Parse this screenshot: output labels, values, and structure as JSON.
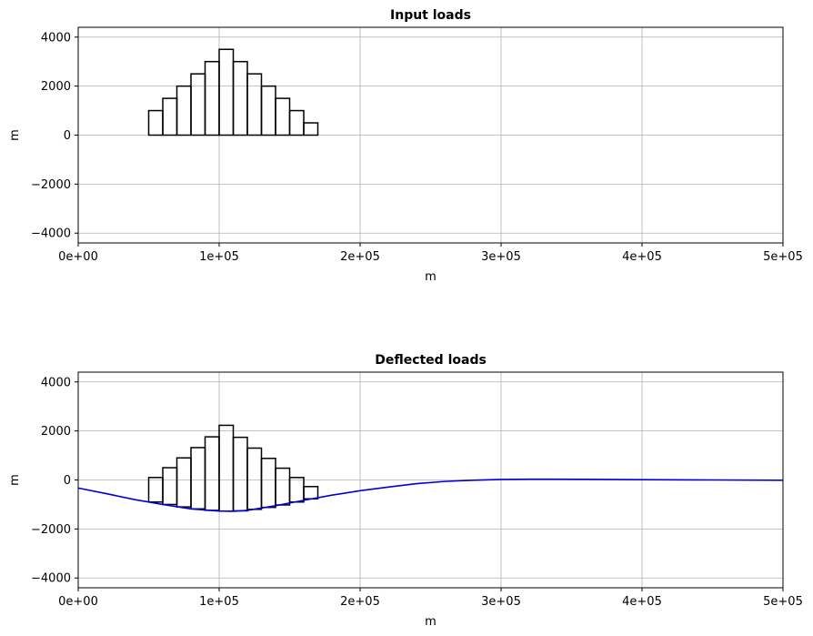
{
  "chart_data": [
    {
      "type": "bar",
      "title": "Input loads",
      "xlabel": "m",
      "ylabel": "m",
      "xlim": [
        0,
        500000
      ],
      "ylim": [
        -4400,
        4400
      ],
      "xticks": [
        0,
        100000,
        200000,
        300000,
        400000,
        500000
      ],
      "xtick_labels": [
        "0e+00",
        "1e+05",
        "2e+05",
        "3e+05",
        "4e+05",
        "5e+05"
      ],
      "yticks": [
        -4000,
        -2000,
        0,
        2000,
        4000
      ],
      "ytick_labels": [
        "−4000",
        "−2000",
        "0",
        "2000",
        "4000"
      ],
      "grid": true,
      "bar_width": 10000,
      "bar_color": "#000000",
      "bars": [
        {
          "x_start": 50000,
          "bottom": 0,
          "top": 1000
        },
        {
          "x_start": 60000,
          "bottom": 0,
          "top": 1500
        },
        {
          "x_start": 70000,
          "bottom": 0,
          "top": 2000
        },
        {
          "x_start": 80000,
          "bottom": 0,
          "top": 2500
        },
        {
          "x_start": 90000,
          "bottom": 0,
          "top": 3000
        },
        {
          "x_start": 100000,
          "bottom": 0,
          "top": 3500
        },
        {
          "x_start": 110000,
          "bottom": 0,
          "top": 3000
        },
        {
          "x_start": 120000,
          "bottom": 0,
          "top": 2500
        },
        {
          "x_start": 130000,
          "bottom": 0,
          "top": 2000
        },
        {
          "x_start": 140000,
          "bottom": 0,
          "top": 1500
        },
        {
          "x_start": 150000,
          "bottom": 0,
          "top": 1000
        },
        {
          "x_start": 160000,
          "bottom": 0,
          "top": 500
        }
      ]
    },
    {
      "type": "line",
      "title": "Deflected loads",
      "xlabel": "m",
      "ylabel": "m",
      "xlim": [
        0,
        500000
      ],
      "ylim": [
        -4400,
        4400
      ],
      "xticks": [
        0,
        100000,
        200000,
        300000,
        400000,
        500000
      ],
      "xtick_labels": [
        "0e+00",
        "1e+05",
        "2e+05",
        "3e+05",
        "4e+05",
        "5e+05"
      ],
      "yticks": [
        -4000,
        -2000,
        0,
        2000,
        4000
      ],
      "ytick_labels": [
        "−4000",
        "−2000",
        "0",
        "2000",
        "4000"
      ],
      "grid": true,
      "bar_width": 10000,
      "bar_color": "#000000",
      "line_color": "#0000dd",
      "bars": [
        {
          "x_start": 50000,
          "bottom": -900,
          "top": 100
        },
        {
          "x_start": 60000,
          "bottom": -1000,
          "top": 500
        },
        {
          "x_start": 70000,
          "bottom": -1100,
          "top": 900
        },
        {
          "x_start": 80000,
          "bottom": -1180,
          "top": 1320
        },
        {
          "x_start": 90000,
          "bottom": -1240,
          "top": 1760
        },
        {
          "x_start": 100000,
          "bottom": -1270,
          "top": 2230
        },
        {
          "x_start": 110000,
          "bottom": -1260,
          "top": 1740
        },
        {
          "x_start": 120000,
          "bottom": -1200,
          "top": 1300
        },
        {
          "x_start": 130000,
          "bottom": -1120,
          "top": 880
        },
        {
          "x_start": 140000,
          "bottom": -1020,
          "top": 480
        },
        {
          "x_start": 150000,
          "bottom": -900,
          "top": 100
        },
        {
          "x_start": 160000,
          "bottom": -770,
          "top": -270
        }
      ],
      "series": [
        {
          "x": [
            0,
            20000,
            40000,
            60000,
            80000,
            100000,
            110000,
            120000,
            140000,
            160000,
            180000,
            200000,
            220000,
            240000,
            260000,
            280000,
            300000,
            320000,
            340000,
            360000,
            400000,
            450000,
            500000
          ],
          "y": [
            -330,
            -560,
            -800,
            -1000,
            -1180,
            -1270,
            -1280,
            -1240,
            -1050,
            -830,
            -620,
            -440,
            -290,
            -150,
            -60,
            -10,
            20,
            30,
            30,
            25,
            10,
            0,
            -10
          ]
        }
      ]
    }
  ]
}
